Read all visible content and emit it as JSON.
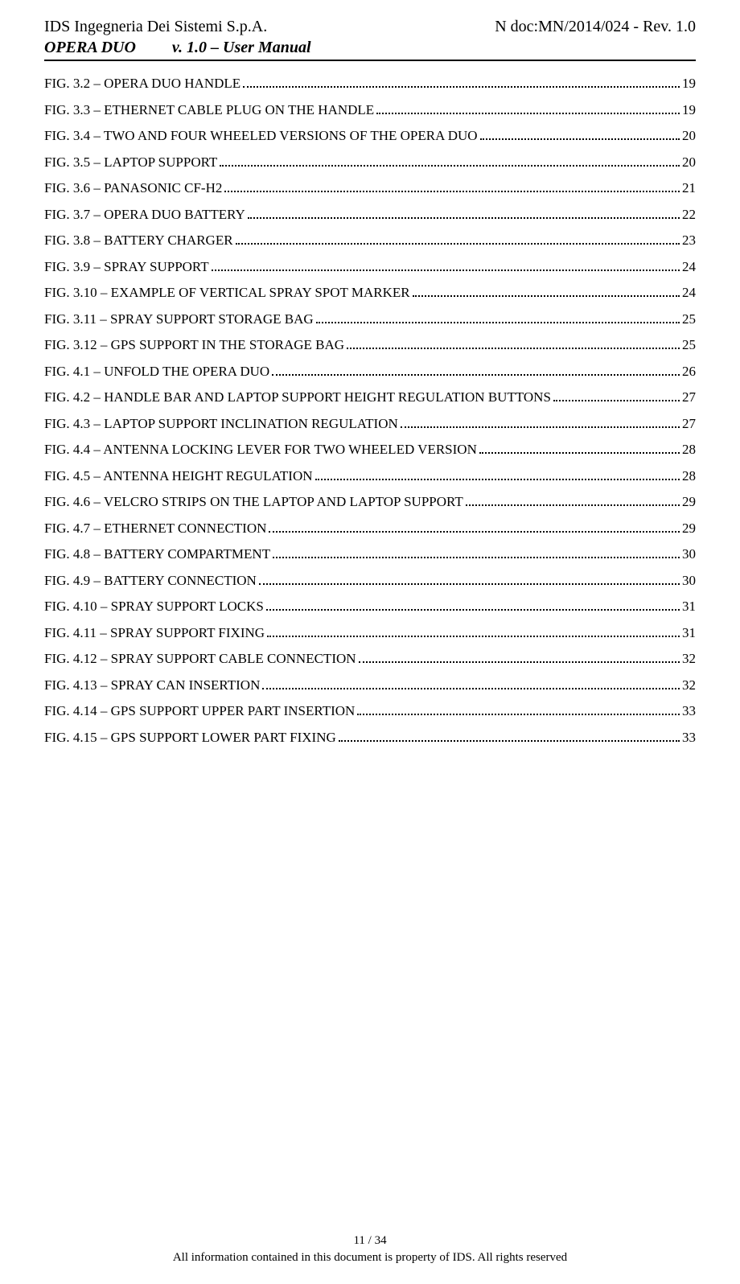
{
  "header": {
    "company": "IDS Ingegneria Dei Sistemi S.p.A.",
    "docref": "N doc:MN/2014/024 - Rev. 1.0",
    "product": "OPERA DUO",
    "version_prefix": "v. 1.0 – User Manual"
  },
  "toc": [
    {
      "label": "FIG. 3.2 – OPERA DUO HANDLE",
      "page": "19"
    },
    {
      "label": "FIG. 3.3 – ETHERNET CABLE PLUG ON THE HANDLE",
      "page": "19"
    },
    {
      "label": "FIG. 3.4 – TWO AND FOUR WHEELED VERSIONS OF THE OPERA DUO",
      "page": "20"
    },
    {
      "label": "FIG. 3.5 – LAPTOP SUPPORT",
      "page": "20"
    },
    {
      "label": "FIG. 3.6 – PANASONIC CF-H2",
      "page": "21"
    },
    {
      "label": "FIG. 3.7 – OPERA DUO BATTERY",
      "page": "22"
    },
    {
      "label": "FIG. 3.8 – BATTERY CHARGER",
      "page": "23"
    },
    {
      "label": "FIG. 3.9 – SPRAY SUPPORT",
      "page": "24"
    },
    {
      "label": "FIG. 3.10 – EXAMPLE OF VERTICAL SPRAY SPOT MARKER",
      "page": "24"
    },
    {
      "label": "FIG. 3.11 – SPRAY SUPPORT STORAGE BAG",
      "page": "25"
    },
    {
      "label": "FIG. 3.12 – GPS SUPPORT IN THE STORAGE BAG",
      "page": "25"
    },
    {
      "label": "FIG. 4.1 – UNFOLD THE OPERA DUO",
      "page": "26"
    },
    {
      "label": "FIG. 4.2 – HANDLE BAR AND LAPTOP SUPPORT HEIGHT REGULATION BUTTONS",
      "page": "27"
    },
    {
      "label": "FIG. 4.3 – LAPTOP SUPPORT INCLINATION REGULATION",
      "page": "27"
    },
    {
      "label": "FIG. 4.4 – ANTENNA LOCKING LEVER FOR TWO WHEELED VERSION",
      "page": "28"
    },
    {
      "label": "FIG. 4.5 – ANTENNA HEIGHT REGULATION",
      "page": "28"
    },
    {
      "label": "FIG. 4.6 – VELCRO STRIPS ON THE LAPTOP AND LAPTOP SUPPORT",
      "page": "29"
    },
    {
      "label": "FIG. 4.7 – ETHERNET CONNECTION",
      "page": "29"
    },
    {
      "label": "FIG. 4.8 – BATTERY COMPARTMENT",
      "page": "30"
    },
    {
      "label": "FIG. 4.9 – BATTERY CONNECTION",
      "page": "30"
    },
    {
      "label": "FIG. 4.10 – SPRAY SUPPORT LOCKS",
      "page": "31"
    },
    {
      "label": "FIG. 4.11 – SPRAY SUPPORT FIXING",
      "page": "31"
    },
    {
      "label": "FIG. 4.12 – SPRAY SUPPORT CABLE CONNECTION",
      "page": "32"
    },
    {
      "label": "FIG. 4.13 – SPRAY CAN INSERTION",
      "page": "32"
    },
    {
      "label": "FIG. 4.14 – GPS SUPPORT UPPER PART INSERTION",
      "page": "33"
    },
    {
      "label": "FIG. 4.15 – GPS SUPPORT LOWER PART FIXING",
      "page": "33"
    }
  ],
  "footer": {
    "page_current": "11",
    "page_sep": " / ",
    "page_total": "34",
    "rights": "All information contained in this document is property of  IDS.  All rights reserved"
  }
}
